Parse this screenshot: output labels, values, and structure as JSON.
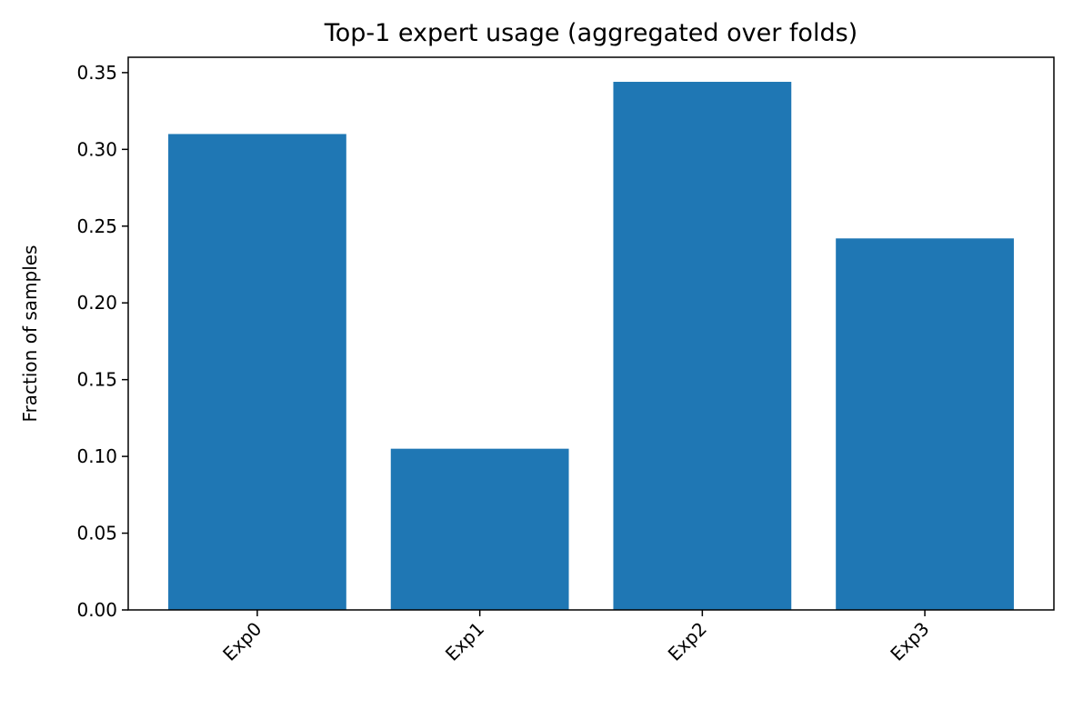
{
  "chart_data": {
    "type": "bar",
    "title": "Top-1 expert usage (aggregated over folds)",
    "xlabel": "",
    "ylabel": "Fraction of samples",
    "categories": [
      "Exp0",
      "Exp1",
      "Exp2",
      "Exp3"
    ],
    "values": [
      0.31,
      0.105,
      0.344,
      0.242
    ],
    "ylim": [
      0,
      0.36
    ],
    "yticks": [
      "0.00",
      "0.05",
      "0.10",
      "0.15",
      "0.20",
      "0.25",
      "0.30",
      "0.35"
    ],
    "grid": false,
    "bar_color": "#1f77b4"
  }
}
